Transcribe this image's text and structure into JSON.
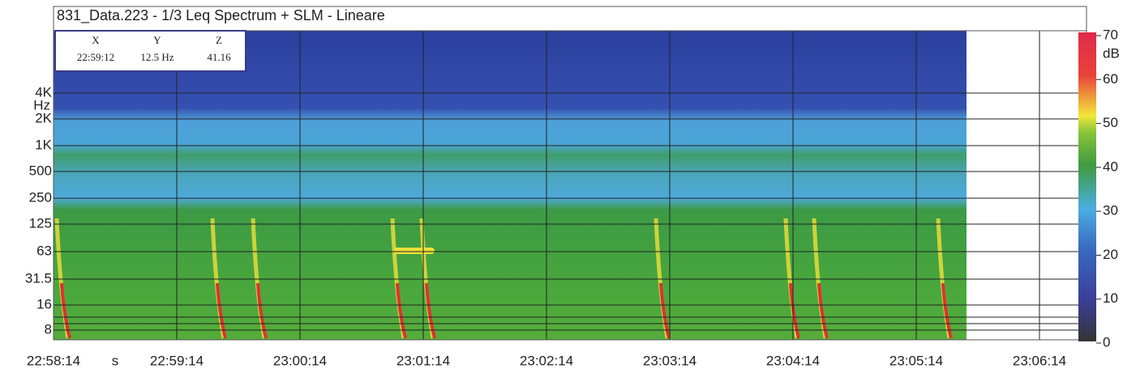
{
  "header": {
    "title": "831_Data.223 - 1/3 Leq Spectrum + SLM - Lineare"
  },
  "cursor": {
    "columns": [
      {
        "label": "X",
        "value": "22:59:12"
      },
      {
        "label": "Y",
        "value": "12.5 Hz"
      },
      {
        "label": "Z",
        "value": "41.16"
      }
    ]
  },
  "y_axis": {
    "unit": "Hz",
    "ticks": [
      "4K",
      "2K",
      "1K",
      "500",
      "250",
      "125",
      "63",
      "31.5",
      "16",
      "8"
    ]
  },
  "x_axis": {
    "unit": "s",
    "ticks": [
      "22:58:14",
      "22:59:14",
      "23:00:14",
      "23:01:14",
      "23:02:14",
      "23:03:14",
      "23:04:14",
      "23:05:14",
      "23:06:14"
    ]
  },
  "colorbar": {
    "unit": "dB",
    "ticks": [
      "70",
      "60",
      "50",
      "40",
      "30",
      "20",
      "10",
      "0"
    ]
  }
}
